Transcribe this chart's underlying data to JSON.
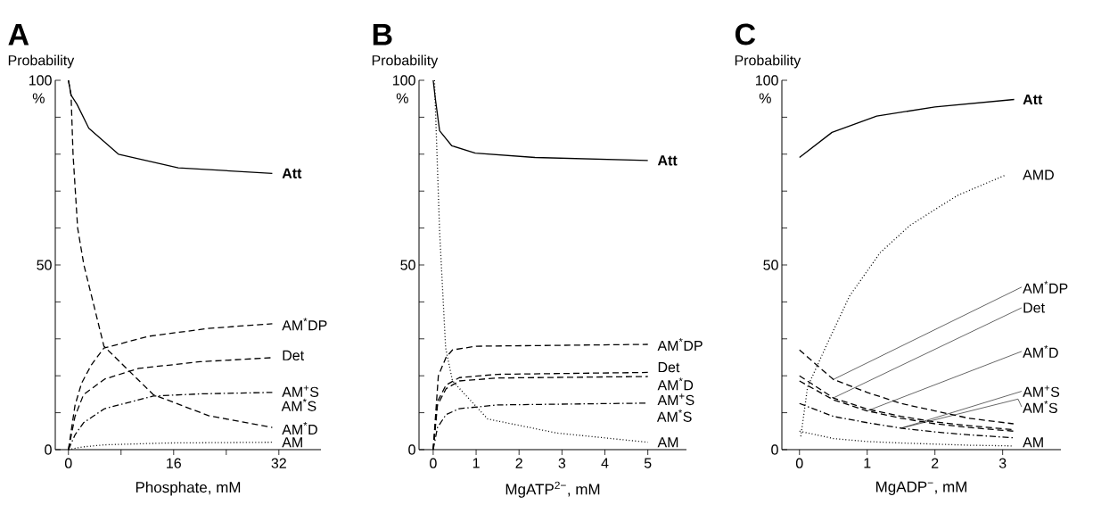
{
  "chart_data": [
    {
      "type": "line",
      "title": "A",
      "ylabel": "Probability",
      "xlabel": "Phosphate, mM",
      "xlim": [
        -2,
        38.4
      ],
      "ylim": [
        0,
        100
      ],
      "xticks": [
        0,
        {
          "value": 8,
          "label": null
        },
        16,
        {
          "value": 24,
          "label": null
        },
        32
      ],
      "yticks": [
        0,
        {
          "value": 10,
          "label": null
        },
        {
          "value": 20,
          "label": null
        },
        {
          "value": 30,
          "label": null
        },
        {
          "value": 40,
          "label": null
        },
        50,
        {
          "value": 60,
          "label": null
        },
        {
          "value": 70,
          "label": null
        },
        {
          "value": 80,
          "label": null
        },
        {
          "value": 90,
          "label": null
        },
        100
      ],
      "series": [
        {
          "name": "Att",
          "color": "#000000",
          "line_style": "solid",
          "x": [
            0,
            0.4,
            1.3,
            3.1,
            7.6,
            16.7,
            31
          ],
          "values": [
            100,
            96,
            93.5,
            87,
            80,
            76.3,
            74.8
          ]
        },
        {
          "name": "AM$^{*}$DP",
          "color": "#000000",
          "line_style": "dashed",
          "x": [
            0,
            1,
            2,
            3.5,
            5.4,
            12.2,
            21.2,
            31
          ],
          "values": [
            0,
            12,
            18,
            23,
            27.5,
            30.7,
            32.8,
            34.1
          ]
        },
        {
          "name": "Det",
          "color": "#000000",
          "line_style": "dashed",
          "x": [
            0,
            1,
            2.3,
            5.5,
            10.7,
            20,
            31
          ],
          "values": [
            0,
            9,
            14.9,
            19.1,
            22,
            23.8,
            24.9
          ]
        },
        {
          "name": "AM$^{+}$S",
          "color": "#000000",
          "line_style": "dashdot",
          "x": [
            0,
            1,
            2.3,
            5.5,
            12.9,
            20,
            31
          ],
          "values": [
            0,
            4,
            7.3,
            11.1,
            14.5,
            15.1,
            15.5
          ]
        },
        {
          "name": "AM$^{*}$D",
          "color": "#000000",
          "line_style": "dashed",
          "x": [
            0,
            0.4,
            0.7,
            1.4,
            2.35,
            5.4,
            12.9,
            21.3,
            31
          ],
          "values": [
            100,
            96,
            80,
            60,
            50,
            28,
            14.9,
            9.2,
            6.0
          ]
        },
        {
          "name": "AM",
          "color": "#000000",
          "line_style": "dotted",
          "x": [
            0,
            2,
            5.4,
            15,
            31
          ],
          "values": [
            0,
            0.7,
            1.3,
            1.8,
            2.0
          ]
        }
      ],
      "annotations": [
        "%",
        {
          "text": "AM$^{*}$S",
          "x": 31,
          "y": 15.5
        }
      ]
    },
    {
      "type": "line",
      "title": "B",
      "ylabel": "Probability",
      "xlabel": "MgATP$^{2−}$, mM",
      "xlim": [
        -0.33,
        5.9
      ],
      "ylim": [
        0,
        100
      ],
      "xticks": [
        0,
        1,
        2,
        3,
        4,
        5
      ],
      "yticks": [
        0,
        {
          "value": 10,
          "label": null
        },
        {
          "value": 20,
          "label": null
        },
        {
          "value": 30,
          "label": null
        },
        {
          "value": 40,
          "label": null
        },
        50,
        {
          "value": 60,
          "label": null
        },
        {
          "value": 70,
          "label": null
        },
        {
          "value": 80,
          "label": null
        },
        {
          "value": 90,
          "label": null
        },
        100
      ],
      "series": [
        {
          "name": "Att",
          "color": "#000000",
          "line_style": "solid",
          "x": [
            0,
            0.05,
            0.15,
            0.43,
            0.98,
            2.37,
            5
          ],
          "values": [
            100,
            95,
            86.3,
            82.3,
            80.3,
            79.1,
            78.3
          ]
        },
        {
          "name": "AM$^{*}$DP",
          "color": "#000000",
          "line_style": "dashed",
          "x": [
            0,
            0.12,
            0.3,
            0.45,
            1,
            5
          ],
          "values": [
            0,
            20,
            25,
            27,
            28,
            28.5
          ]
        },
        {
          "name": "Det",
          "color": "#000000",
          "line_style": "dashed",
          "x": [
            0,
            0.1,
            0.3,
            0.61,
            1.5,
            5
          ],
          "values": [
            0,
            13,
            17.5,
            19.5,
            20.4,
            20.9
          ]
        },
        {
          "name": "AM$^{*}$D",
          "color": "#000000",
          "line_style": "dashed",
          "x": [
            0,
            0.1,
            0.3,
            0.61,
            1.5,
            5
          ],
          "values": [
            0,
            12,
            16.5,
            18.6,
            19.4,
            19.8
          ]
        },
        {
          "name": "AM$^{+}$S",
          "color": "#000000",
          "line_style": "dashdot",
          "x": [
            0,
            0.1,
            0.3,
            0.61,
            1.5,
            5
          ],
          "values": [
            0,
            6,
            9.5,
            11.1,
            12.1,
            12.6
          ]
        },
        {
          "name": "AM",
          "color": "#000000",
          "line_style": "dotted",
          "x": [
            0.03,
            0.15,
            0.29,
            0.45,
            1.27,
            2.88,
            5
          ],
          "values": [
            100,
            59,
            27.5,
            18.6,
            8.3,
            4.5,
            2.0
          ]
        }
      ],
      "annotations": [
        "%",
        {
          "text": "AM$^{*}$S",
          "x": 5,
          "y": 12.6
        }
      ]
    },
    {
      "type": "line",
      "title": "C",
      "ylabel": "Probability",
      "xlabel": "MgADP$^{−}$, mM",
      "xlim": [
        -0.26,
        3.86
      ],
      "ylim": [
        0,
        100
      ],
      "xticks": [
        0,
        1,
        2,
        3
      ],
      "yticks": [
        0,
        {
          "value": 10,
          "label": null
        },
        {
          "value": 20,
          "label": null
        },
        {
          "value": 30,
          "label": null
        },
        {
          "value": 40,
          "label": null
        },
        50,
        {
          "value": 60,
          "label": null
        },
        {
          "value": 70,
          "label": null
        },
        {
          "value": 80,
          "label": null
        },
        {
          "value": 90,
          "label": null
        },
        100
      ],
      "series": [
        {
          "name": "Att",
          "color": "#000000",
          "line_style": "solid",
          "x": [
            0,
            0.48,
            1.14,
            2.0,
            3.17
          ],
          "values": [
            79.1,
            85.9,
            90.3,
            92.8,
            94.8
          ]
        },
        {
          "name": "AMD",
          "color": "#000000",
          "line_style": "dotted",
          "x": [
            0.02,
            0.12,
            0.41,
            0.74,
            1.19,
            1.63,
            2.33,
            3.05
          ],
          "values": [
            3.6,
            17,
            28.7,
            41.6,
            53.3,
            60.7,
            68.8,
            74.4
          ]
        },
        {
          "name": "AM$^{*}$DP",
          "color": "#000000",
          "line_style": "dashed",
          "x": [
            0,
            0.5,
            1,
            1.5,
            2,
            2.5,
            3.16
          ],
          "values": [
            27,
            19,
            15.5,
            12.5,
            10.5,
            8.5,
            7.0
          ]
        },
        {
          "name": "Det",
          "color": "#000000",
          "line_style": "dashed",
          "x": [
            0,
            0.5,
            1,
            1.5,
            2,
            2.5,
            3.16
          ],
          "values": [
            20,
            14,
            11,
            9,
            7.5,
            6.5,
            5.4
          ]
        },
        {
          "name": "AM$^{*}$D",
          "color": "#000000",
          "line_style": "dashed",
          "x": [
            0,
            0.5,
            1,
            1.5,
            2,
            2.5,
            3.16
          ],
          "values": [
            18.6,
            13.5,
            10.5,
            8.5,
            7,
            6,
            5.0
          ]
        },
        {
          "name": "AM$^{+}$S",
          "color": "#000000",
          "line_style": "dashdot",
          "x": [
            0,
            0.5,
            1,
            1.5,
            2,
            2.5,
            3.16
          ],
          "values": [
            12.5,
            9,
            7.3,
            5.8,
            4.8,
            4,
            3.2
          ]
        },
        {
          "name": "AM",
          "color": "#000000",
          "line_style": "dotted",
          "x": [
            0,
            0.5,
            1,
            1.5,
            2,
            2.5,
            3.16
          ],
          "values": [
            5,
            3,
            2.2,
            1.8,
            1.5,
            1.2,
            1.0
          ]
        }
      ],
      "annotations": [
        "%",
        {
          "text": "AM$^{*}$S",
          "x": 1.5,
          "y": 5.8
        }
      ]
    }
  ]
}
